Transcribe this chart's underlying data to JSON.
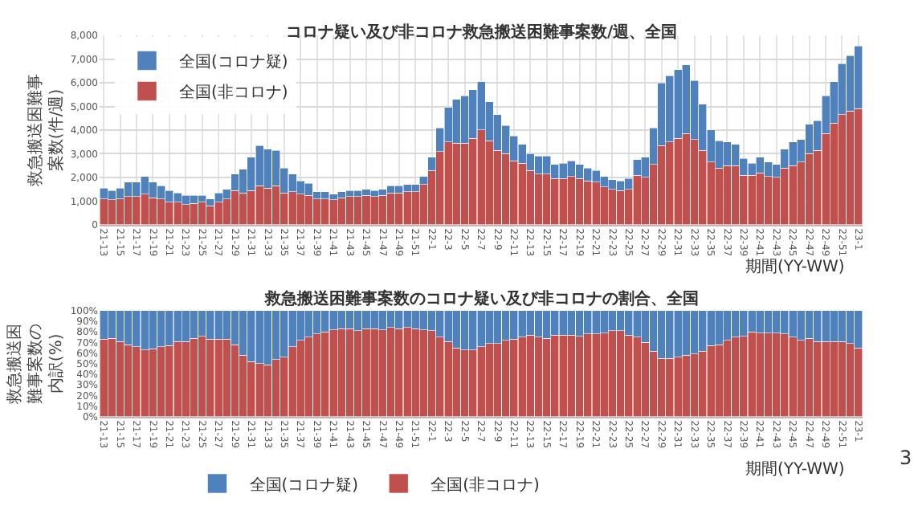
{
  "chart_data": [
    {
      "type": "bar",
      "title": "コロナ疑い及び非コロナ救急搬送困難事案数/週、全国",
      "xlabel": "期間(YY-WW)",
      "ylabel": "救急搬送困難事案数(件/週)",
      "stacked": true,
      "grid": true,
      "legend": "top left",
      "categories": [
        "21-13",
        null,
        "21-15",
        null,
        "21-17",
        null,
        "21-19",
        null,
        "21-21",
        null,
        "21-23",
        null,
        "21-25",
        null,
        "21-27",
        null,
        "21-29",
        null,
        "21-31",
        null,
        "21-33",
        null,
        "21-35",
        null,
        "21-37",
        null,
        "21-39",
        null,
        "21-41",
        null,
        "21-43",
        null,
        "21-45",
        null,
        "21-47",
        null,
        "21-49",
        null,
        "21-51",
        null,
        "22-1",
        null,
        "22-3",
        null,
        "22-5",
        null,
        "22-7",
        null,
        "22-9",
        null,
        "22-11",
        null,
        "22-13",
        null,
        "22-15",
        null,
        "22-17",
        null,
        "22-19",
        null,
        "22-21",
        null,
        "22-23",
        null,
        "22-25",
        null,
        "22-27",
        null,
        "22-29",
        null,
        "22-31",
        null,
        "22-33",
        null,
        "22-35",
        null,
        "22-37",
        null,
        "22-39",
        null,
        "22-41",
        null,
        "22-43",
        null,
        "22-45",
        null,
        "22-47",
        null,
        "22-49",
        null,
        "22-51",
        null,
        "23-1"
      ],
      "ylim": [
        0,
        8000
      ],
      "yticks": [
        {
          "value": 0,
          "label": "0"
        },
        {
          "value": 1000,
          "label": "1,000"
        },
        {
          "value": 2000,
          "label": "2,000"
        },
        {
          "value": 3000,
          "label": "3,000"
        },
        {
          "value": 4000,
          "label": "4,000"
        },
        {
          "value": 5000,
          "label": "5,000"
        },
        {
          "value": 6000,
          "label": "6,000"
        },
        {
          "value": 7000,
          "label": "7,000"
        },
        {
          "value": 8000,
          "label": "8,000"
        }
      ],
      "series": [
        {
          "name": "全国(非コロナ)",
          "color": "#c0504d",
          "values": [
            1100,
            1050,
            1100,
            1200,
            1200,
            1300,
            1150,
            1100,
            950,
            950,
            850,
            900,
            950,
            800,
            950,
            1100,
            1450,
            1350,
            1450,
            1650,
            1550,
            1650,
            1350,
            1400,
            1300,
            1250,
            1100,
            1100,
            1050,
            1150,
            1200,
            1200,
            1250,
            1200,
            1250,
            1350,
            1350,
            1400,
            1400,
            1700,
            2300,
            3100,
            3500,
            3450,
            3450,
            3650,
            4000,
            3550,
            3150,
            3000,
            2700,
            2600,
            2300,
            2150,
            2150,
            1950,
            1950,
            2050,
            1950,
            1850,
            1800,
            1600,
            1500,
            1450,
            1500,
            2100,
            2000,
            2550,
            3350,
            3500,
            3650,
            3850,
            3600,
            3150,
            2650,
            2400,
            2500,
            2500,
            2100,
            2100,
            2200,
            2050,
            2000,
            2400,
            2500,
            2650,
            3000,
            3150,
            3850,
            4300,
            4650,
            4800,
            4900
          ]
        },
        {
          "name": "全国(コロナ疑)",
          "color": "#4f81bd",
          "values": [
            450,
            400,
            450,
            600,
            600,
            750,
            650,
            550,
            500,
            400,
            400,
            350,
            300,
            300,
            400,
            400,
            700,
            1000,
            1400,
            1700,
            1650,
            1500,
            1050,
            750,
            550,
            500,
            300,
            300,
            250,
            250,
            250,
            250,
            250,
            250,
            250,
            300,
            300,
            300,
            300,
            350,
            550,
            1000,
            1450,
            1850,
            2000,
            2050,
            2050,
            1650,
            1500,
            1200,
            1050,
            800,
            700,
            750,
            750,
            600,
            650,
            650,
            600,
            550,
            500,
            450,
            400,
            400,
            450,
            650,
            850,
            1550,
            2650,
            2800,
            2900,
            2900,
            2500,
            1950,
            1350,
            1150,
            1000,
            900,
            700,
            500,
            650,
            600,
            550,
            800,
            1000,
            950,
            1250,
            1250,
            1600,
            1750,
            2150,
            2350,
            2650
          ]
        }
      ]
    },
    {
      "type": "bar",
      "title": "救急搬送困難事案数のコロナ疑い及び非コロナの割合、全国",
      "xlabel": "期間(YY-WW)",
      "ylabel": "救急搬送困難事案数の内訳(%)",
      "stacked": true,
      "legend": "bottom",
      "categories": [
        "21-13",
        null,
        "21-15",
        null,
        "21-17",
        null,
        "21-19",
        null,
        "21-21",
        null,
        "21-23",
        null,
        "21-25",
        null,
        "21-27",
        null,
        "21-29",
        null,
        "21-31",
        null,
        "21-33",
        null,
        "21-35",
        null,
        "21-37",
        null,
        "21-39",
        null,
        "21-41",
        null,
        "21-43",
        null,
        "21-45",
        null,
        "21-47",
        null,
        "21-49",
        null,
        "21-51",
        null,
        "22-1",
        null,
        "22-3",
        null,
        "22-5",
        null,
        "22-7",
        null,
        "22-9",
        null,
        "22-11",
        null,
        "22-13",
        null,
        "22-15",
        null,
        "22-17",
        null,
        "22-19",
        null,
        "22-21",
        null,
        "22-23",
        null,
        "22-25",
        null,
        "22-27",
        null,
        "22-29",
        null,
        "22-31",
        null,
        "22-33",
        null,
        "22-35",
        null,
        "22-37",
        null,
        "22-39",
        null,
        "22-41",
        null,
        "22-43",
        null,
        "22-45",
        null,
        "22-47",
        null,
        "22-49",
        null,
        "22-51",
        null,
        "23-1"
      ],
      "ylim": [
        0,
        100
      ],
      "yticks": [
        {
          "value": 0,
          "label": "0%"
        },
        {
          "value": 10,
          "label": "10%"
        },
        {
          "value": 20,
          "label": "20%"
        },
        {
          "value": 30,
          "label": "30%"
        },
        {
          "value": 40,
          "label": "40%"
        },
        {
          "value": 50,
          "label": "50%"
        },
        {
          "value": 60,
          "label": "60%"
        },
        {
          "value": 70,
          "label": "70%"
        },
        {
          "value": 80,
          "label": "80%"
        },
        {
          "value": 90,
          "label": "90%"
        },
        {
          "value": 100,
          "label": "100%"
        }
      ],
      "annotations": [
        "3"
      ],
      "series": [
        {
          "name": "全国(非コロナ)",
          "color": "#c0504d",
          "values": [
            73,
            74,
            71,
            68,
            66,
            63,
            64,
            66,
            67,
            71,
            71,
            74,
            76,
            73,
            73,
            73,
            68,
            58,
            52,
            50,
            49,
            54,
            56,
            66,
            72,
            75,
            78,
            80,
            82,
            83,
            83,
            81,
            83,
            83,
            82,
            84,
            83,
            84,
            83,
            82,
            81,
            75,
            71,
            65,
            63,
            63,
            66,
            69,
            69,
            72,
            73,
            75,
            77,
            75,
            74,
            77,
            77,
            77,
            76,
            78,
            78,
            79,
            81,
            81,
            77,
            75,
            70,
            62,
            55,
            55,
            56,
            58,
            59,
            62,
            67,
            68,
            72,
            75,
            76,
            80,
            79,
            79,
            79,
            78,
            75,
            72,
            74,
            71,
            71,
            71,
            71,
            69,
            65
          ]
        },
        {
          "name": "全国(コロナ疑)",
          "color": "#4f81bd",
          "values": [
            27,
            26,
            29,
            32,
            34,
            37,
            36,
            34,
            33,
            29,
            29,
            26,
            24,
            27,
            27,
            27,
            32,
            42,
            48,
            50,
            51,
            46,
            44,
            34,
            28,
            25,
            22,
            20,
            18,
            17,
            17,
            19,
            17,
            17,
            18,
            16,
            17,
            16,
            17,
            18,
            19,
            25,
            29,
            35,
            37,
            37,
            34,
            31,
            31,
            28,
            27,
            25,
            23,
            25,
            26,
            23,
            23,
            23,
            24,
            22,
            22,
            21,
            19,
            19,
            23,
            25,
            30,
            38,
            45,
            45,
            44,
            42,
            41,
            38,
            33,
            32,
            28,
            25,
            24,
            20,
            21,
            21,
            21,
            22,
            25,
            28,
            26,
            29,
            29,
            29,
            29,
            31,
            35
          ]
        }
      ]
    }
  ]
}
